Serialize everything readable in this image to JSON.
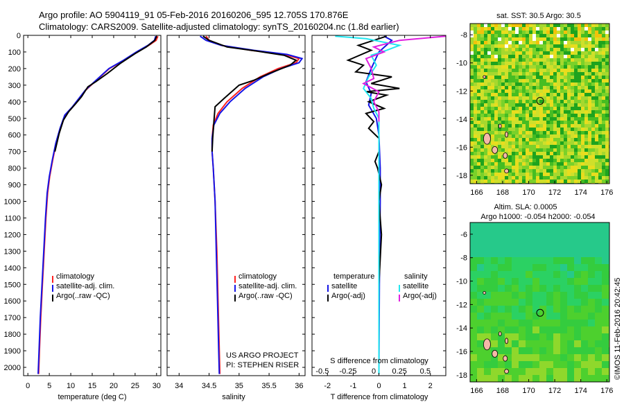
{
  "header": {
    "line1": "Argo profile: AO 5904119_91 05-Feb-2016 20160206_595 12.705S 170.876E",
    "line2": "Climatology: CARS2009. Satellite-adjusted climatology: synTS_20160204.nc (1.8d earlier)"
  },
  "colors": {
    "climatology": "#ff2020",
    "satellite": "#1414e6",
    "argo": "#000000",
    "s_satellite": "#22e6f0",
    "s_argo": "#e020e0"
  },
  "chart_data": [
    {
      "id": "temperature",
      "type": "line",
      "xlabel": "temperature (deg C)",
      "ylabel": "",
      "xlim": [
        -1,
        31
      ],
      "ylim": [
        2050,
        0
      ],
      "x_ticks": [
        0,
        5,
        10,
        15,
        20,
        25,
        30
      ],
      "y_ticks": [
        0,
        100,
        200,
        300,
        400,
        500,
        600,
        700,
        800,
        900,
        1000,
        1100,
        1200,
        1300,
        1400,
        1500,
        1600,
        1700,
        1800,
        1900,
        2000
      ],
      "legend": [
        "climatology",
        "satellite-adj. clim.",
        "Argo(..raw -QC)"
      ],
      "legend_loc": "center-left",
      "series": [
        {
          "name": "climatology",
          "color": "#ff2020",
          "points": [
            [
              30.3,
              5
            ],
            [
              29.9,
              30
            ],
            [
              28.2,
              60
            ],
            [
              25.5,
              100
            ],
            [
              22.5,
              150
            ],
            [
              19,
              200
            ],
            [
              16,
              270
            ],
            [
              13.5,
              330
            ],
            [
              12,
              380
            ],
            [
              10.5,
              430
            ],
            [
              8.7,
              480
            ],
            [
              7.6,
              560
            ],
            [
              6.6,
              650
            ],
            [
              5.8,
              750
            ],
            [
              5.1,
              850
            ],
            [
              4.6,
              950
            ],
            [
              4.2,
              1100
            ],
            [
              3.8,
              1300
            ],
            [
              3.4,
              1500
            ],
            [
              3.0,
              1700
            ],
            [
              2.7,
              1900
            ],
            [
              2.5,
              2040
            ]
          ]
        },
        {
          "name": "satellite-adj. clim.",
          "color": "#1414e6",
          "points": [
            [
              29.8,
              5
            ],
            [
              29.5,
              30
            ],
            [
              28.0,
              60
            ],
            [
              25.3,
              100
            ],
            [
              22.3,
              150
            ],
            [
              18.9,
              200
            ],
            [
              15.9,
              270
            ],
            [
              13.4,
              330
            ],
            [
              11.9,
              380
            ],
            [
              10.4,
              430
            ],
            [
              8.6,
              480
            ],
            [
              7.5,
              560
            ],
            [
              6.5,
              650
            ],
            [
              5.7,
              750
            ],
            [
              5.0,
              850
            ],
            [
              4.5,
              950
            ],
            [
              4.1,
              1100
            ],
            [
              3.7,
              1300
            ],
            [
              3.3,
              1500
            ],
            [
              2.9,
              1700
            ],
            [
              2.6,
              1900
            ],
            [
              2.4,
              2040
            ]
          ]
        },
        {
          "name": "Argo(..raw -QC)",
          "color": "#000000",
          "points": [
            [
              30.0,
              5
            ],
            [
              29.6,
              30
            ],
            [
              27.6,
              70
            ],
            [
              25.0,
              110
            ],
            [
              21.5,
              170
            ],
            [
              18.5,
              230
            ],
            [
              15.8,
              280
            ],
            [
              14.0,
              310
            ],
            [
              12.5,
              370
            ],
            [
              11.2,
              410
            ],
            [
              9.5,
              460
            ],
            [
              8.3,
              510
            ],
            [
              7.3,
              590
            ],
            [
              6.3,
              700
            ]
          ]
        }
      ]
    },
    {
      "id": "salinity",
      "type": "line",
      "xlabel": "salinity",
      "ylabel": "",
      "xlim": [
        33.8,
        36.1
      ],
      "ylim": [
        2050,
        0
      ],
      "x_ticks": [
        34,
        34.5,
        35,
        35.5,
        36
      ],
      "legend": [
        "climatology",
        "satellite-adj. clim.",
        "Argo(..raw -QC)"
      ],
      "legend_loc": "center-left",
      "series": [
        {
          "name": "climatology",
          "color": "#ff2020",
          "points": [
            [
              34.45,
              5
            ],
            [
              34.5,
              30
            ],
            [
              34.7,
              60
            ],
            [
              35.2,
              90
            ],
            [
              35.75,
              115
            ],
            [
              36.0,
              140
            ],
            [
              35.95,
              165
            ],
            [
              35.65,
              200
            ],
            [
              35.35,
              250
            ],
            [
              35.05,
              320
            ],
            [
              34.8,
              400
            ],
            [
              34.65,
              470
            ],
            [
              34.57,
              540
            ],
            [
              34.55,
              620
            ],
            [
              34.55,
              700
            ],
            [
              34.57,
              800
            ],
            [
              34.6,
              1000
            ],
            [
              34.63,
              1300
            ],
            [
              34.65,
              1600
            ],
            [
              34.67,
              1900
            ],
            [
              34.68,
              2040
            ]
          ]
        },
        {
          "name": "satellite-adj. clim.",
          "color": "#1414e6",
          "points": [
            [
              34.35,
              5
            ],
            [
              34.45,
              30
            ],
            [
              34.7,
              60
            ],
            [
              35.25,
              90
            ],
            [
              35.8,
              115
            ],
            [
              36.05,
              140
            ],
            [
              36.0,
              165
            ],
            [
              35.7,
              200
            ],
            [
              35.4,
              250
            ],
            [
              35.1,
              320
            ],
            [
              34.85,
              400
            ],
            [
              34.68,
              470
            ],
            [
              34.58,
              540
            ],
            [
              34.55,
              620
            ],
            [
              34.55,
              700
            ],
            [
              34.57,
              800
            ],
            [
              34.6,
              1000
            ],
            [
              34.62,
              1300
            ],
            [
              34.64,
              1600
            ],
            [
              34.66,
              1900
            ],
            [
              34.67,
              2040
            ]
          ]
        },
        {
          "name": "Argo(..raw -QC)",
          "color": "#000000",
          "points": [
            [
              34.4,
              5
            ],
            [
              34.5,
              30
            ],
            [
              34.8,
              70
            ],
            [
              35.3,
              95
            ],
            [
              35.75,
              120
            ],
            [
              35.95,
              150
            ],
            [
              35.85,
              180
            ],
            [
              35.5,
              230
            ],
            [
              35.25,
              270
            ],
            [
              35.0,
              300
            ],
            [
              34.75,
              380
            ],
            [
              34.6,
              430
            ],
            [
              34.58,
              520
            ],
            [
              34.56,
              620
            ],
            [
              34.55,
              700
            ]
          ]
        }
      ],
      "annotations": [
        "US ARGO PROJECT",
        "PI: STEPHEN RISER"
      ]
    },
    {
      "id": "difference",
      "type": "line",
      "xlabel": "T difference from climatology",
      "xlabel_top": "S difference from climatology",
      "xlim": [
        -2.6,
        2.6
      ],
      "ylim": [
        2050,
        0
      ],
      "x_ticks": [
        -2,
        -1,
        0,
        1,
        2
      ],
      "s_ticks": [
        -0.5,
        -0.25,
        0,
        0.25,
        0.5
      ],
      "legend_titles": [
        "temperature",
        "salinity"
      ],
      "legend": [
        "satellite",
        "Argo(-adj)",
        "satellite",
        "Argo(-adj)"
      ],
      "legend_loc": "center",
      "series": [
        {
          "name": "satellite",
          "group": "temperature",
          "color": "#1414e6",
          "points": [
            [
              0.2,
              5
            ],
            [
              0.5,
              30
            ],
            [
              0.0,
              100
            ],
            [
              -0.3,
              200
            ],
            [
              -0.5,
              280
            ],
            [
              -0.3,
              350
            ],
            [
              -0.4,
              420
            ],
            [
              -0.1,
              500
            ],
            [
              0.0,
              600
            ],
            [
              0.05,
              800
            ],
            [
              0.05,
              1000
            ],
            [
              0.02,
              1500
            ],
            [
              0.0,
              2040
            ]
          ]
        },
        {
          "name": "Argo(-adj)",
          "group": "temperature",
          "color": "#000000",
          "points": [
            [
              0.3,
              5
            ],
            [
              -0.8,
              60
            ],
            [
              -0.3,
              90
            ],
            [
              -1.2,
              150
            ],
            [
              -0.6,
              180
            ],
            [
              -0.9,
              220
            ],
            [
              0.5,
              250
            ],
            [
              -0.3,
              290
            ],
            [
              0.8,
              320
            ],
            [
              -0.5,
              340
            ],
            [
              0.3,
              360
            ],
            [
              -0.4,
              400
            ],
            [
              0.2,
              440
            ],
            [
              -0.5,
              470
            ],
            [
              -0.2,
              520
            ],
            [
              -0.4,
              560
            ],
            [
              0.0,
              620
            ],
            [
              0.0,
              700
            ],
            [
              -0.15,
              760
            ],
            [
              -0.05,
              800
            ],
            [
              0.1,
              900
            ],
            [
              0.0,
              1000
            ],
            [
              0.1,
              1200
            ],
            [
              0.0,
              1500
            ],
            [
              0.0,
              2040
            ]
          ]
        },
        {
          "name": "satellite",
          "group": "salinity",
          "color": "#22e6f0",
          "points": [
            [
              -1.7,
              5
            ],
            [
              -0.5,
              20
            ],
            [
              0.8,
              60
            ],
            [
              0.3,
              90
            ],
            [
              -0.3,
              120
            ],
            [
              -0.1,
              180
            ],
            [
              -0.4,
              250
            ],
            [
              -0.6,
              320
            ],
            [
              -0.3,
              380
            ],
            [
              -0.2,
              440
            ],
            [
              0.0,
              500
            ],
            [
              0.0,
              600
            ],
            [
              0.0,
              800
            ],
            [
              0.0,
              1000
            ],
            [
              0.0,
              1500
            ],
            [
              0.0,
              2040
            ]
          ]
        },
        {
          "name": "Argo(-adj)",
          "group": "salinity",
          "color": "#e020e0",
          "points": [
            [
              2.6,
              5
            ],
            [
              0.8,
              30
            ],
            [
              -0.2,
              70
            ],
            [
              0.2,
              100
            ],
            [
              -0.5,
              140
            ],
            [
              -0.3,
              200
            ],
            [
              -0.2,
              260
            ],
            [
              -0.6,
              290
            ],
            [
              0.0,
              340
            ],
            [
              -0.2,
              400
            ],
            [
              0.0,
              460
            ],
            [
              0.0,
              520
            ]
          ]
        }
      ],
      "annotations": []
    },
    {
      "id": "sst_map",
      "type": "heatmap",
      "title": "sat. SST: 30.5 Argo: 30.5",
      "xlim": [
        165.5,
        176.2
      ],
      "ylim": [
        -18.6,
        -7.2
      ],
      "x_ticks": [
        166,
        168,
        170,
        172,
        174,
        176
      ],
      "y_ticks": [
        -8,
        -10,
        -12,
        -14,
        -16,
        -18
      ],
      "argo_position": {
        "lon": 170.876,
        "lat": -12.705
      },
      "palette": [
        "#1ea31e",
        "#46bd22",
        "#7ad12a",
        "#a6d82e",
        "#cfe02a",
        "#e8dd1e",
        "#f2c20a",
        "#2aa9a8"
      ]
    },
    {
      "id": "sla_map",
      "type": "heatmap",
      "title": "Altim. SLA: 0.0005",
      "subtitle": "Argo h1000: -0.054 h2000: -0.054",
      "xlim": [
        165.5,
        176.2
      ],
      "ylim": [
        -18.6,
        -5.0
      ],
      "x_ticks": [
        166,
        168,
        170,
        172,
        174,
        176
      ],
      "y_ticks": [
        -6,
        -8,
        -10,
        -12,
        -14,
        -16,
        -18
      ],
      "argo_position": {
        "lon": 170.876,
        "lat": -12.705
      },
      "palette": [
        "#26c98a",
        "#2bd163",
        "#34cc3e",
        "#4dd02e",
        "#8fd82c",
        "#c8de2c"
      ]
    }
  ],
  "footer": {
    "credit": "©IMOS 11-Feb-2016 20:42:45"
  }
}
